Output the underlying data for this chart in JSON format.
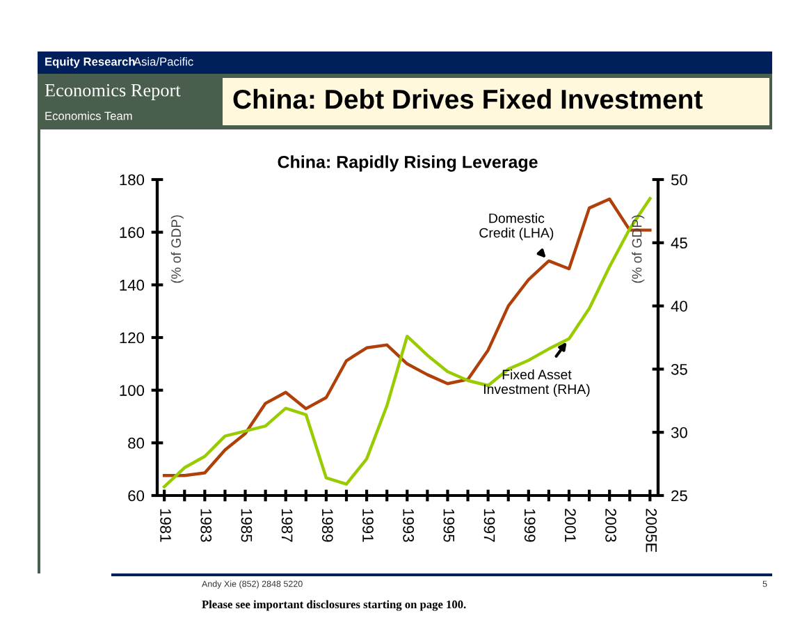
{
  "chart_data": {
    "type": "line",
    "title": "China: Rapidly Rising Leverage",
    "ylabel": "(% of GDP)",
    "y2label": "(% of GDP)",
    "categories": [
      "1981",
      null,
      "1983",
      null,
      "1985",
      null,
      "1987",
      null,
      "1989",
      null,
      "1991",
      null,
      "1993",
      null,
      "1995",
      null,
      "1997",
      null,
      "1999",
      null,
      "2001",
      null,
      "2003",
      null,
      "2005E"
    ],
    "series": [
      {
        "name": "Domestic Credit (LHA)",
        "color": "#b0400a",
        "values": [
          67.6,
          67.6,
          68.6,
          77.3,
          83.5,
          95,
          99.2,
          93,
          97.2,
          111.2,
          116.1,
          117.2,
          110,
          105.9,
          102.5,
          104.1,
          115.2,
          132,
          142,
          149.1,
          146.1,
          169.2,
          172.6,
          160.8,
          160.8
        ]
      },
      {
        "name": "Fixed Asset Investment (RHA)",
        "color": "#99cc00",
        "axis": "y2",
        "values": [
          25.7,
          27.2,
          28.1,
          29.7,
          30.1,
          30.5,
          31.9,
          31.4,
          26.4,
          25.9,
          27.9,
          32.1,
          37.6,
          36.1,
          34.8,
          34.1,
          33.7,
          35,
          35.7,
          36.6,
          37.4,
          39.8,
          43.1,
          46.1,
          48.5
        ]
      }
    ],
    "ylim": [
      60,
      180
    ],
    "yticks": [
      60,
      80,
      100,
      120,
      140,
      160,
      180
    ],
    "y2lim": [
      25,
      50
    ],
    "y2ticks": [
      25,
      30,
      35,
      40,
      45,
      50
    ],
    "grid": false,
    "legend": false,
    "marker": "none",
    "line_style": "solid",
    "annotations": [
      "Equity Research",
      "Asia/Pacific",
      "Economics Report",
      "Economics Team",
      "China: Debt Drives Fixed Investment",
      "Andy Xie (852) 2848 5220",
      "Please see important disclosures starting on page 100.",
      "5"
    ]
  }
}
